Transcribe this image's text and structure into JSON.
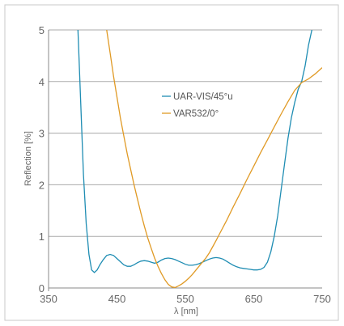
{
  "chart_data": {
    "type": "line",
    "xlabel": "λ [nm]",
    "ylabel": "Reflection [%]",
    "xlim": [
      350,
      750
    ],
    "ylim": [
      0,
      5
    ],
    "x_ticks": [
      "350",
      "450",
      "550",
      "650",
      "750"
    ],
    "y_ticks": [
      "0",
      "1",
      "2",
      "3",
      "4",
      "5"
    ],
    "grid": "horizontal",
    "legend": "center",
    "colors": {
      "frame": "#c8c8c8",
      "grid": "#aaaaaa",
      "axis": "#888888"
    },
    "series": [
      {
        "name": "UAR-VIS/45°u",
        "color": "#1f8db3",
        "x": [
          393,
          397,
          401,
          405,
          409,
          413,
          417,
          421,
          425,
          430,
          435,
          440,
          445,
          450,
          455,
          460,
          465,
          470,
          475,
          480,
          485,
          490,
          495,
          500,
          505,
          510,
          515,
          520,
          525,
          530,
          535,
          540,
          545,
          550,
          555,
          560,
          565,
          570,
          575,
          580,
          585,
          590,
          595,
          600,
          605,
          610,
          615,
          620,
          625,
          630,
          635,
          640,
          645,
          650,
          655,
          660,
          665,
          670,
          675,
          680,
          685,
          690,
          695,
          700,
          705,
          710,
          715,
          720,
          725,
          730,
          735,
          740
        ],
        "y": [
          5.0,
          3.6,
          2.2,
          1.25,
          0.65,
          0.35,
          0.3,
          0.35,
          0.45,
          0.55,
          0.63,
          0.65,
          0.63,
          0.57,
          0.51,
          0.45,
          0.42,
          0.42,
          0.45,
          0.49,
          0.52,
          0.53,
          0.52,
          0.5,
          0.48,
          0.5,
          0.54,
          0.57,
          0.58,
          0.57,
          0.55,
          0.52,
          0.49,
          0.46,
          0.44,
          0.44,
          0.45,
          0.47,
          0.5,
          0.53,
          0.56,
          0.58,
          0.59,
          0.58,
          0.56,
          0.52,
          0.48,
          0.44,
          0.41,
          0.39,
          0.38,
          0.37,
          0.36,
          0.35,
          0.35,
          0.36,
          0.4,
          0.5,
          0.7,
          1.0,
          1.4,
          1.9,
          2.4,
          2.9,
          3.3,
          3.6,
          3.85,
          4.0,
          4.3,
          4.7,
          5.0,
          5.2
        ]
      },
      {
        "name": "VAR532/0°",
        "color": "#e09a25",
        "x": [
          435,
          440,
          445,
          450,
          455,
          460,
          465,
          470,
          475,
          480,
          485,
          490,
          495,
          500,
          505,
          510,
          515,
          520,
          525,
          530,
          535,
          540,
          545,
          550,
          555,
          560,
          565,
          570,
          575,
          580,
          585,
          590,
          595,
          600,
          610,
          620,
          630,
          640,
          650,
          660,
          670,
          680,
          690,
          700,
          710,
          720,
          730,
          740,
          750
        ],
        "y": [
          5.0,
          4.55,
          4.1,
          3.7,
          3.3,
          2.95,
          2.6,
          2.3,
          2.0,
          1.72,
          1.45,
          1.2,
          0.97,
          0.77,
          0.58,
          0.42,
          0.28,
          0.16,
          0.07,
          0.02,
          0.01,
          0.04,
          0.08,
          0.13,
          0.19,
          0.26,
          0.34,
          0.42,
          0.5,
          0.58,
          0.68,
          0.8,
          0.92,
          1.05,
          1.3,
          1.57,
          1.83,
          2.1,
          2.36,
          2.62,
          2.87,
          3.12,
          3.37,
          3.61,
          3.83,
          3.98,
          4.05,
          4.15,
          4.27
        ]
      }
    ]
  }
}
